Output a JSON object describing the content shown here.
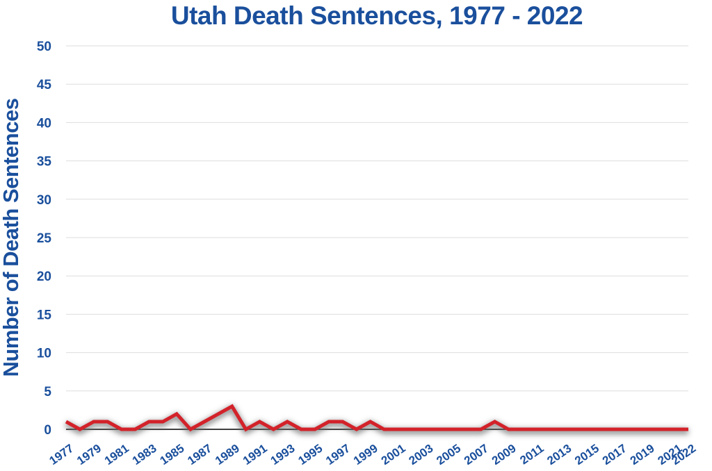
{
  "chart_data": {
    "type": "line",
    "title": "Utah Death Sentences, 1977 - 2022",
    "xlabel": "",
    "ylabel": "Number of Death Sentences",
    "x": [
      1977,
      1978,
      1979,
      1980,
      1981,
      1982,
      1983,
      1984,
      1985,
      1986,
      1987,
      1988,
      1989,
      1990,
      1991,
      1992,
      1993,
      1994,
      1995,
      1996,
      1997,
      1998,
      1999,
      2000,
      2001,
      2002,
      2003,
      2004,
      2005,
      2006,
      2007,
      2008,
      2009,
      2010,
      2011,
      2012,
      2013,
      2014,
      2015,
      2016,
      2017,
      2018,
      2019,
      2020,
      2021,
      2022
    ],
    "x_tick_labels": [
      "1977",
      "1979",
      "1981",
      "1983",
      "1985",
      "1987",
      "1989",
      "1991",
      "1993",
      "1995",
      "1997",
      "1999",
      "2001",
      "2003",
      "2005",
      "2007",
      "2009",
      "2011",
      "2013",
      "2015",
      "2017",
      "2019",
      "2021",
      "2022"
    ],
    "series": [
      {
        "values": [
          1,
          0,
          1,
          1,
          0,
          0,
          1,
          1,
          2,
          0,
          1,
          2,
          3,
          0,
          1,
          0,
          1,
          0,
          0,
          1,
          1,
          0,
          1,
          0,
          0,
          0,
          0,
          0,
          0,
          0,
          0,
          1,
          0,
          0,
          0,
          0,
          0,
          0,
          0,
          0,
          0,
          0,
          0,
          0,
          0,
          0
        ],
        "color": "#d3222a"
      }
    ],
    "ylim": [
      0,
      50
    ],
    "y_ticks": [
      0,
      5,
      10,
      15,
      20,
      25,
      30,
      35,
      40,
      45,
      50
    ],
    "grid": true,
    "legend": "none",
    "colors": {
      "text": "#1a4f9c",
      "line": "#d3222a",
      "grid": "#dddddd",
      "axis": "#000000"
    }
  }
}
